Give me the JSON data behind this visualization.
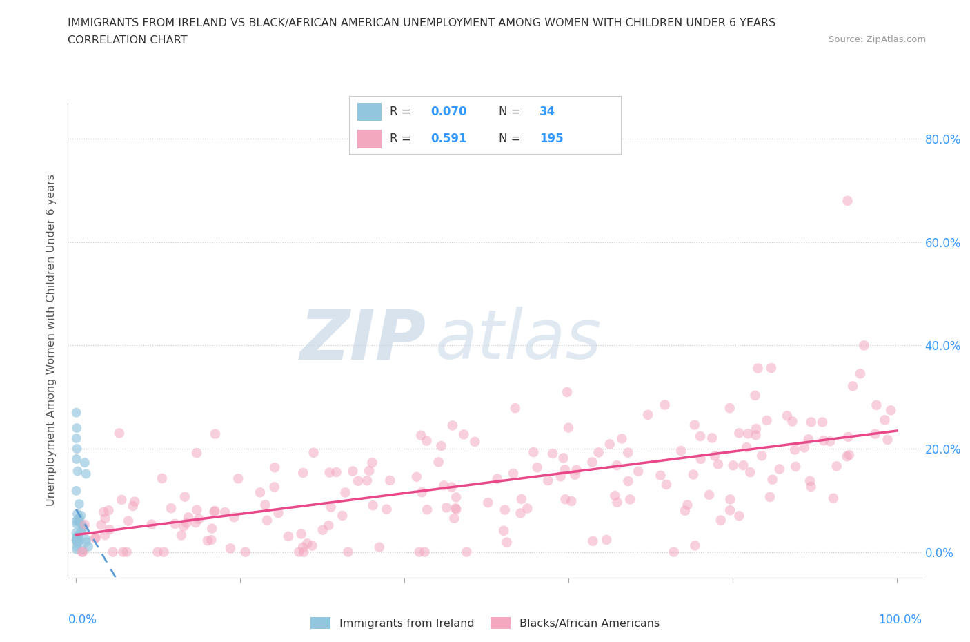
{
  "title_line1": "IMMIGRANTS FROM IRELAND VS BLACK/AFRICAN AMERICAN UNEMPLOYMENT AMONG WOMEN WITH CHILDREN UNDER 6 YEARS",
  "title_line2": "CORRELATION CHART",
  "source_text": "Source: ZipAtlas.com",
  "ylabel": "Unemployment Among Women with Children Under 6 years",
  "r_ireland": 0.07,
  "n_ireland": 34,
  "r_black": 0.591,
  "n_black": 195,
  "color_ireland": "#92c5de",
  "color_black": "#f4a8c0",
  "color_ireland_line": "#5b9bd5",
  "color_black_line": "#e8488a",
  "legend_label_ireland": "Immigrants from Ireland",
  "legend_label_black": "Blacks/African Americans",
  "watermark_zip": "ZIP",
  "watermark_atlas": "atlas",
  "background_color": "#ffffff",
  "grid_color": "#cccccc",
  "title_color": "#333333",
  "tick_color": "#3399ff",
  "xlim": [
    -1,
    103
  ],
  "ylim": [
    -5,
    87
  ]
}
